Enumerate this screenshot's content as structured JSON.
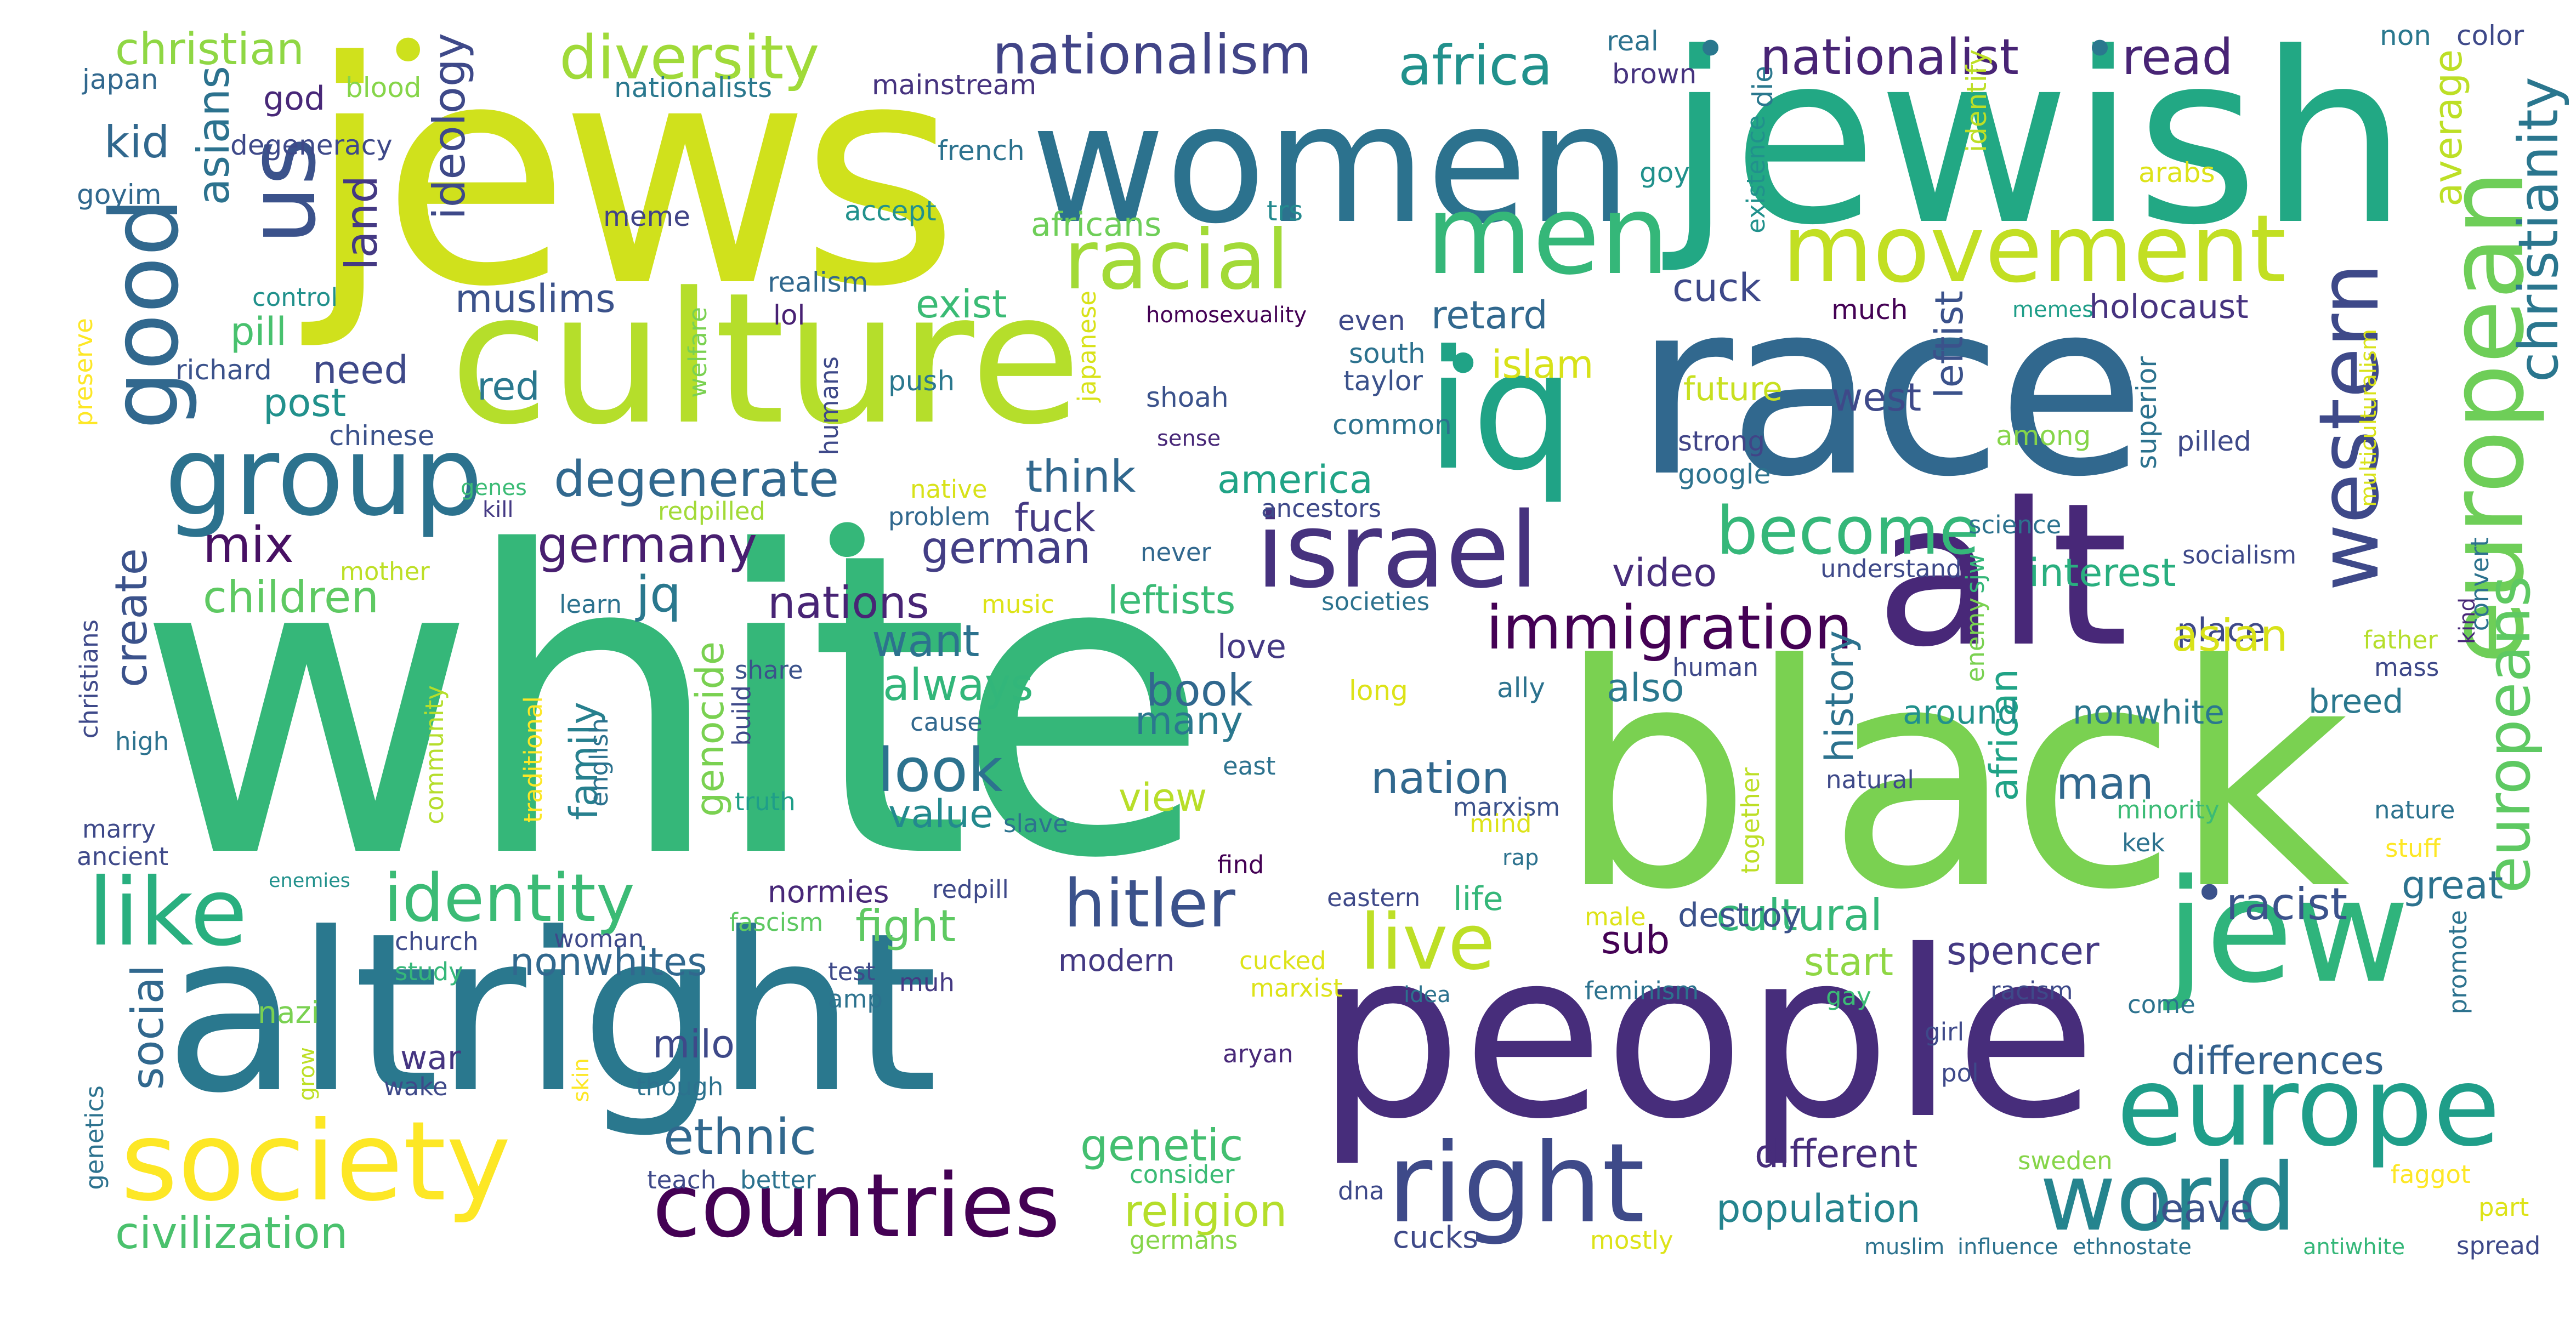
{
  "words": {
    "white": {
      "text": "white",
      "color": "#35b779"
    },
    "black": {
      "text": "black",
      "color": "#7ad151"
    },
    "jews": {
      "text": "jews",
      "color": "#d0e11c"
    },
    "jewish": {
      "text": "jewish",
      "color": "#22a884"
    },
    "race": {
      "text": "race",
      "color": "#31688e"
    },
    "women": {
      "text": "women",
      "color": "#2c728e"
    },
    "people": {
      "text": "people",
      "color": "#472d7b"
    },
    "altright": {
      "text": "altright",
      "color": "#2a788e"
    },
    "culture": {
      "text": "culture",
      "color": "#b5de2b"
    },
    "alt": {
      "text": "alt",
      "color": "#482878"
    },
    "jew": {
      "text": "jew",
      "color": "#2fb47c"
    },
    "iq": {
      "text": "iq",
      "color": "#20a386"
    },
    "europe": {
      "text": "europe",
      "color": "#1f9e89"
    },
    "society": {
      "text": "society",
      "color": "#fde725"
    },
    "group": {
      "text": "group",
      "color": "#2c728e"
    },
    "countries": {
      "text": "countries",
      "color": "#440154"
    },
    "right": {
      "text": "right",
      "color": "#3e4a89"
    },
    "world": {
      "text": "world",
      "color": "#25848e"
    },
    "men": {
      "text": "men",
      "color": "#35b779"
    },
    "movement": {
      "text": "movement",
      "color": "#c2df23"
    },
    "israel": {
      "text": "israel",
      "color": "#46327e"
    },
    "european": {
      "text": "european",
      "color": "#6ece58"
    },
    "like": {
      "text": "like",
      "color": "#29af7f"
    },
    "us": {
      "text": "us",
      "color": "#3b528b"
    },
    "good": {
      "text": "good",
      "color": "#31688e"
    },
    "racial": {
      "text": "racial",
      "color": "#a2da37"
    },
    "western": {
      "text": "western",
      "color": "#3e4989"
    },
    "live": {
      "text": "live",
      "color": "#bddf26"
    },
    "identity": {
      "text": "identity",
      "color": "#3bbb75"
    },
    "hitler": {
      "text": "hitler",
      "color": "#3b528b"
    },
    "become": {
      "text": "become",
      "color": "#35b779"
    },
    "immigration": {
      "text": "immigration",
      "color": "#440154"
    },
    "europeans": {
      "text": "europeans",
      "color": "#5ec962"
    },
    "christianity": {
      "text": "christianity",
      "color": "#2a768e"
    },
    "diversity": {
      "text": "diversity",
      "color": "#a0da39"
    },
    "nationalism": {
      "text": "nationalism",
      "color": "#414487"
    },
    "africa": {
      "text": "africa",
      "color": "#21918c"
    },
    "nationalist": {
      "text": "nationalist",
      "color": "#482475"
    },
    "read": {
      "text": "read",
      "color": "#482475"
    },
    "christian": {
      "text": "christian",
      "color": "#8fd744"
    },
    "kid": {
      "text": "kid",
      "color": "#31688e"
    },
    "asians": {
      "text": "asians",
      "color": "#2c728e"
    },
    "land": {
      "text": "land",
      "color": "#443983"
    },
    "ideology": {
      "text": "ideology",
      "color": "#3e4989"
    },
    "degenerate": {
      "text": "degenerate",
      "color": "#31688e"
    },
    "germany": {
      "text": "germany",
      "color": "#481f70"
    },
    "german": {
      "text": "german",
      "color": "#433e85"
    },
    "mix": {
      "text": "mix",
      "color": "#471063"
    },
    "children": {
      "text": "children",
      "color": "#5ec962"
    },
    "create": {
      "text": "create",
      "color": "#3b528b"
    },
    "jq": {
      "text": "jq",
      "color": "#2a788e"
    },
    "nations": {
      "text": "nations",
      "color": "#482475"
    },
    "want": {
      "text": "want",
      "color": "#2c728e"
    },
    "always": {
      "text": "always",
      "color": "#32b67a"
    },
    "look": {
      "text": "look",
      "color": "#2c728e"
    },
    "book": {
      "text": "book",
      "color": "#31688e"
    },
    "many": {
      "text": "many",
      "color": "#2a788e"
    },
    "value": {
      "text": "value",
      "color": "#23898e"
    },
    "genocide": {
      "text": "genocide",
      "color": "#7ad151"
    },
    "family": {
      "text": "family",
      "color": "#27808e"
    },
    "nation": {
      "text": "nation",
      "color": "#31688e"
    },
    "view": {
      "text": "view",
      "color": "#b8de29"
    },
    "ethnic": {
      "text": "ethnic",
      "color": "#31688e"
    },
    "genetic": {
      "text": "genetic",
      "color": "#44bf70"
    },
    "religion": {
      "text": "religion",
      "color": "#b5de2b"
    },
    "civilization": {
      "text": "civilization",
      "color": "#4ac16d"
    },
    "social": {
      "text": "social",
      "color": "#31688e"
    },
    "nonwhites": {
      "text": "nonwhites",
      "color": "#31688e"
    },
    "fight": {
      "text": "fight",
      "color": "#5ec962"
    },
    "milo": {
      "text": "milo",
      "color": "#3e4989"
    },
    "war": {
      "text": "war",
      "color": "#453581"
    },
    "video": {
      "text": "video",
      "color": "#472d7b"
    },
    "also": {
      "text": "also",
      "color": "#2a788e"
    },
    "history": {
      "text": "history",
      "color": "#2c728e"
    },
    "leftist": {
      "text": "leftist",
      "color": "#3b528b"
    },
    "african": {
      "text": "african",
      "color": "#20a386"
    },
    "interest": {
      "text": "interest",
      "color": "#29af7f"
    },
    "place": {
      "text": "place",
      "color": "#3e4989"
    },
    "asian": {
      "text": "asian",
      "color": "#d8e219"
    },
    "around": {
      "text": "around",
      "color": "#21918c"
    },
    "nonwhite": {
      "text": "nonwhite",
      "color": "#2a788e"
    },
    "breed": {
      "text": "breed",
      "color": "#2a788e"
    },
    "man": {
      "text": "man",
      "color": "#31688e"
    },
    "racist": {
      "text": "racist",
      "color": "#3b528b"
    },
    "great": {
      "text": "great",
      "color": "#2c728e"
    },
    "differences": {
      "text": "differences",
      "color": "#34618d"
    },
    "spencer": {
      "text": "spencer",
      "color": "#443983"
    },
    "start": {
      "text": "start",
      "color": "#8fd744"
    },
    "cultural": {
      "text": "cultural",
      "color": "#35b779"
    },
    "different": {
      "text": "different",
      "color": "#472d7b"
    },
    "population": {
      "text": "population",
      "color": "#25848e"
    },
    "leave": {
      "text": "leave",
      "color": "#3b528b"
    },
    "sub": {
      "text": "sub",
      "color": "#440154"
    },
    "muslims": {
      "text": "muslims",
      "color": "#3b528b"
    },
    "exist": {
      "text": "exist",
      "color": "#3bbb75"
    },
    "cuck": {
      "text": "cuck",
      "color": "#3e4989"
    },
    "retard": {
      "text": "retard",
      "color": "#31688e"
    },
    "islam": {
      "text": "islam",
      "color": "#d8e219"
    },
    "red": {
      "text": "red",
      "color": "#2a788e"
    },
    "need": {
      "text": "need",
      "color": "#3e4989"
    },
    "post": {
      "text": "post",
      "color": "#21918c"
    },
    "pill": {
      "text": "pill",
      "color": "#48c16e"
    },
    "think": {
      "text": "think",
      "color": "#31688e"
    },
    "america": {
      "text": "america",
      "color": "#20a386"
    },
    "fuck": {
      "text": "fuck",
      "color": "#443983"
    },
    "leftists": {
      "text": "leftists",
      "color": "#3bbb75"
    },
    "west": {
      "text": "west",
      "color": "#3e4989"
    },
    "future": {
      "text": "future",
      "color": "#c8e020"
    },
    "strong": {
      "text": "strong",
      "color": "#414487"
    },
    "google": {
      "text": "google",
      "color": "#2c728e"
    },
    "holocaust": {
      "text": "holocaust",
      "color": "#46337f"
    },
    "much": {
      "text": "much",
      "color": "#440154"
    },
    "memes": {
      "text": "memes",
      "color": "#1f9e89"
    },
    "average": {
      "text": "average",
      "color": "#bddf26"
    },
    "identify": {
      "text": "identify",
      "color": "#bddf26"
    },
    "arabs": {
      "text": "arabs",
      "color": "#dde318"
    },
    "non": {
      "text": "non",
      "color": "#2a788e"
    },
    "color": {
      "text": "color",
      "color": "#3e4989"
    },
    "real": {
      "text": "real",
      "color": "#2c728e"
    },
    "brown": {
      "text": "brown",
      "color": "#46337f"
    },
    "die": {
      "text": "die",
      "color": "#2a788e"
    },
    "existence": {
      "text": "existence",
      "color": "#21918c"
    },
    "trs": {
      "text": "trs",
      "color": "#23898e"
    },
    "africans": {
      "text": "africans",
      "color": "#6ece58"
    },
    "accept": {
      "text": "accept",
      "color": "#21918c"
    },
    "meme": {
      "text": "meme",
      "color": "#414487"
    },
    "french": {
      "text": "french",
      "color": "#2c728e"
    },
    "mainstream": {
      "text": "mainstream",
      "color": "#46337f"
    },
    "nationalists": {
      "text": "nationalists",
      "color": "#2a788e"
    },
    "blood": {
      "text": "blood",
      "color": "#86d549"
    },
    "god": {
      "text": "god",
      "color": "#482878"
    },
    "degeneracy": {
      "text": "degeneracy",
      "color": "#3e4989"
    },
    "japan": {
      "text": "japan",
      "color": "#31688e"
    },
    "goyim": {
      "text": "goyim",
      "color": "#31688e"
    },
    "realism": {
      "text": "realism",
      "color": "#31688e"
    },
    "lol": {
      "text": "lol",
      "color": "#482173"
    },
    "control": {
      "text": "control",
      "color": "#21918c"
    },
    "welfare": {
      "text": "welfare",
      "color": "#7ad151"
    },
    "richard": {
      "text": "richard",
      "color": "#3b528b"
    },
    "chinese": {
      "text": "chinese",
      "color": "#3b528b"
    },
    "preserve": {
      "text": "preserve",
      "color": "#fde725"
    },
    "push": {
      "text": "push",
      "color": "#2a788e"
    },
    "humans": {
      "text": "humans",
      "color": "#3e4989"
    },
    "japanese": {
      "text": "japanese",
      "color": "#d8e219"
    },
    "homosexuality": {
      "text": "homosexuality",
      "color": "#440154"
    },
    "shoah": {
      "text": "shoah",
      "color": "#3b528b"
    },
    "sense": {
      "text": "sense",
      "color": "#482878"
    },
    "even": {
      "text": "even",
      "color": "#3e4989"
    },
    "south": {
      "text": "south",
      "color": "#2c728e"
    },
    "taylor": {
      "text": "taylor",
      "color": "#3b528b"
    },
    "common": {
      "text": "common",
      "color": "#2c728e"
    },
    "among": {
      "text": "among",
      "color": "#86d549"
    },
    "superior": {
      "text": "superior",
      "color": "#2c728e"
    },
    "pilled": {
      "text": "pilled",
      "color": "#3e4989"
    },
    "multiculturalism": {
      "text": "multiculturalism",
      "color": "#d8e219"
    },
    "goy": {
      "text": "goy",
      "color": "#21918c"
    },
    "genes": {
      "text": "genes",
      "color": "#3bbb75"
    },
    "kill": {
      "text": "kill",
      "color": "#443983"
    },
    "redpilled": {
      "text": "redpilled",
      "color": "#a2da37"
    },
    "native": {
      "text": "native",
      "color": "#d8e219"
    },
    "problem": {
      "text": "problem",
      "color": "#31688e"
    },
    "ancestors": {
      "text": "ancestors",
      "color": "#3e4989"
    },
    "mother": {
      "text": "mother",
      "color": "#bddf26"
    },
    "science": {
      "text": "science",
      "color": "#2c728e"
    },
    "understand": {
      "text": "understand",
      "color": "#3e4989"
    },
    "socialism": {
      "text": "socialism",
      "color": "#3e4989"
    },
    "convert": {
      "text": "convert",
      "color": "#2c728e"
    },
    "kind": {
      "text": "kind",
      "color": "#482878"
    },
    "learn": {
      "text": "learn",
      "color": "#2c728e"
    },
    "music": {
      "text": "music",
      "color": "#dde318"
    },
    "societies": {
      "text": "societies",
      "color": "#2c728e"
    },
    "never": {
      "text": "never",
      "color": "#31688e"
    },
    "sjw": {
      "text": "sjw",
      "color": "#35b779"
    },
    "enemy": {
      "text": "enemy",
      "color": "#7ad151"
    },
    "father": {
      "text": "father",
      "color": "#b5de2b"
    },
    "mass": {
      "text": "mass",
      "color": "#3e4989"
    },
    "christians": {
      "text": "christians",
      "color": "#3e4989"
    },
    "community": {
      "text": "community",
      "color": "#b5de2b"
    },
    "share": {
      "text": "share",
      "color": "#3b528b"
    },
    "cause": {
      "text": "cause",
      "color": "#31688e"
    },
    "love": {
      "text": "love",
      "color": "#443983"
    },
    "long": {
      "text": "long",
      "color": "#dde318"
    },
    "ally": {
      "text": "ally",
      "color": "#2c728e"
    },
    "human": {
      "text": "human",
      "color": "#3e4989"
    },
    "high": {
      "text": "high",
      "color": "#2c728e"
    },
    "traditional": {
      "text": "traditional",
      "color": "#fde725"
    },
    "english": {
      "text": "english",
      "color": "#2c728e"
    },
    "build": {
      "text": "build",
      "color": "#3e4989"
    },
    "truth": {
      "text": "truth",
      "color": "#1f9e89"
    },
    "east": {
      "text": "east",
      "color": "#2c728e"
    },
    "marxism": {
      "text": "marxism",
      "color": "#3b528b"
    },
    "mind": {
      "text": "mind",
      "color": "#dde318"
    },
    "natural": {
      "text": "natural",
      "color": "#3e4989"
    },
    "together": {
      "text": "together",
      "color": "#bddf26"
    },
    "minority": {
      "text": "minority",
      "color": "#3bbb75"
    },
    "kek": {
      "text": "kek",
      "color": "#2c728e"
    },
    "nature": {
      "text": "nature",
      "color": "#2c728e"
    },
    "stuff": {
      "text": "stuff",
      "color": "#fde725"
    },
    "marry": {
      "text": "marry",
      "color": "#3e4989"
    },
    "ancient": {
      "text": "ancient",
      "color": "#3e4989"
    },
    "enemies": {
      "text": "enemies",
      "color": "#21918c"
    },
    "genetics": {
      "text": "genetics",
      "color": "#2c728e"
    },
    "slave": {
      "text": "slave",
      "color": "#2c728e"
    },
    "find": {
      "text": "find",
      "color": "#440154"
    },
    "rap": {
      "text": "rap",
      "color": "#2c728e"
    },
    "redpill": {
      "text": "redpill",
      "color": "#3e4989"
    },
    "normies": {
      "text": "normies",
      "color": "#482878"
    },
    "fascism": {
      "text": "fascism",
      "color": "#5ec962"
    },
    "life": {
      "text": "life",
      "color": "#35b779"
    },
    "eastern": {
      "text": "eastern",
      "color": "#3e4989"
    },
    "male": {
      "text": "male",
      "color": "#dde318"
    },
    "destroy": {
      "text": "destroy",
      "color": "#3b528b"
    },
    "church": {
      "text": "church",
      "color": "#3e4989"
    },
    "woman": {
      "text": "woman",
      "color": "#3e4989"
    },
    "study": {
      "text": "study",
      "color": "#35b779"
    },
    "test": {
      "text": "test",
      "color": "#3e4989"
    },
    "amp": {
      "text": "amp",
      "color": "#2c728e"
    },
    "muh": {
      "text": "muh",
      "color": "#443983"
    },
    "modern": {
      "text": "modern",
      "color": "#443983"
    },
    "cucked": {
      "text": "cucked",
      "color": "#dde318"
    },
    "marxist": {
      "text": "marxist",
      "color": "#dde318"
    },
    "idea": {
      "text": "idea",
      "color": "#2c728e"
    },
    "feminism": {
      "text": "feminism",
      "color": "#2c728e"
    },
    "gay": {
      "text": "gay",
      "color": "#3bbb75"
    },
    "racism": {
      "text": "racism",
      "color": "#3e4989"
    },
    "come": {
      "text": "come",
      "color": "#2c728e"
    },
    "promote": {
      "text": "promote",
      "color": "#2c728e"
    },
    "nazi": {
      "text": "nazi",
      "color": "#7ad151"
    },
    "grow": {
      "text": "grow",
      "color": "#bddf26"
    },
    "skin": {
      "text": "skin",
      "color": "#fde725"
    },
    "wake": {
      "text": "wake",
      "color": "#3e4989"
    },
    "though": {
      "text": "though",
      "color": "#2c728e"
    },
    "aryan": {
      "text": "aryan",
      "color": "#482878"
    },
    "girl": {
      "text": "girl",
      "color": "#3e4989"
    },
    "pol": {
      "text": "pol",
      "color": "#3e4989"
    },
    "teach": {
      "text": "teach",
      "color": "#3e4989"
    },
    "better": {
      "text": "better",
      "color": "#2c728e"
    },
    "consider": {
      "text": "consider",
      "color": "#3bbb75"
    },
    "dna": {
      "text": "dna",
      "color": "#3e4989"
    },
    "cucks": {
      "text": "cucks",
      "color": "#3e4989"
    },
    "germans": {
      "text": "germans",
      "color": "#86d549"
    },
    "mostly": {
      "text": "mostly",
      "color": "#dde318"
    },
    "muslim": {
      "text": "muslim",
      "color": "#2c728e"
    },
    "influence": {
      "text": "influence",
      "color": "#2c728e"
    },
    "ethnostate": {
      "text": "ethnostate",
      "color": "#2c728e"
    },
    "sweden": {
      "text": "sweden",
      "color": "#86d549"
    },
    "antiwhite": {
      "text": "antiwhite",
      "color": "#35b779"
    },
    "spread": {
      "text": "spread",
      "color": "#3e4989"
    },
    "faggot": {
      "text": "faggot",
      "color": "#fde725"
    },
    "part": {
      "text": "part",
      "color": "#dde318"
    },
    "dot": {
      "text": "•"
    }
  }
}
